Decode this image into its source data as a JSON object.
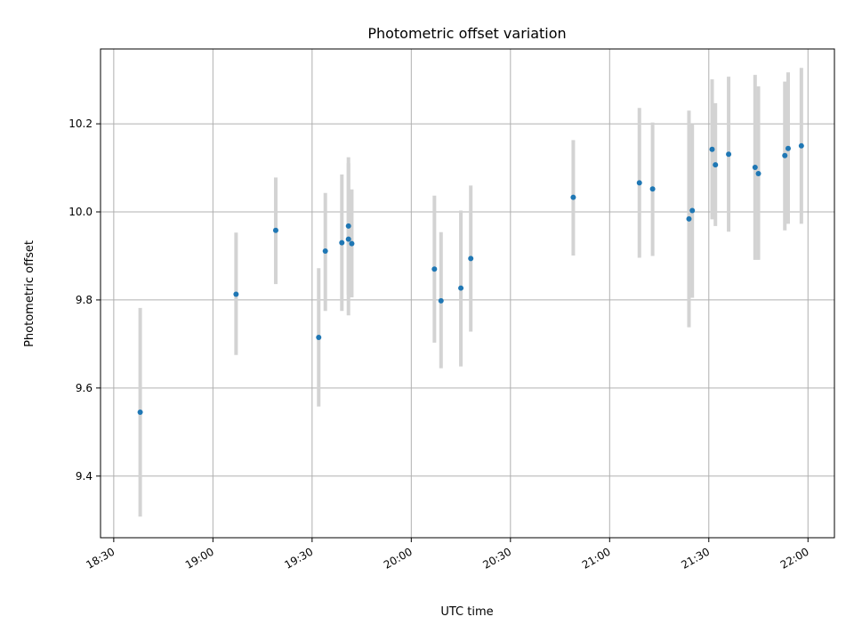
{
  "chart_data": {
    "type": "scatter",
    "title": "Photometric offset variation",
    "xlabel": "UTC time",
    "ylabel": "Photometric offset",
    "x_unit": "UTC time (HH:MM)",
    "xlim": [
      "18:26",
      "22:08"
    ],
    "ylim": [
      9.26,
      10.37
    ],
    "grid": true,
    "x_ticks": [
      "18:30",
      "19:00",
      "19:30",
      "20:00",
      "20:30",
      "21:00",
      "21:30",
      "22:00"
    ],
    "y_ticks": [
      "9.4",
      "9.6",
      "9.8",
      "10.0",
      "10.2"
    ],
    "marker_color": "#1f77b4",
    "errorbar_color": "#d3d3d3",
    "points": [
      {
        "x": "18:38",
        "y": 9.545,
        "err_low": 9.308,
        "err_high": 9.782
      },
      {
        "x": "19:07",
        "y": 9.813,
        "err_low": 9.675,
        "err_high": 9.953
      },
      {
        "x": "19:19",
        "y": 9.958,
        "err_low": 9.836,
        "err_high": 10.078
      },
      {
        "x": "19:32",
        "y": 9.715,
        "err_low": 9.558,
        "err_high": 9.872
      },
      {
        "x": "19:34",
        "y": 9.911,
        "err_low": 9.775,
        "err_high": 10.043
      },
      {
        "x": "19:39",
        "y": 9.93,
        "err_low": 9.775,
        "err_high": 10.085
      },
      {
        "x": "19:41",
        "y": 9.938,
        "err_low": 9.765,
        "err_high": 10.111
      },
      {
        "x": "19:41",
        "y": 9.968,
        "err_low": 9.812,
        "err_high": 10.124
      },
      {
        "x": "19:42",
        "y": 9.928,
        "err_low": 9.806,
        "err_high": 10.051
      },
      {
        "x": "20:07",
        "y": 9.87,
        "err_low": 9.703,
        "err_high": 10.037
      },
      {
        "x": "20:09",
        "y": 9.798,
        "err_low": 9.645,
        "err_high": 9.954
      },
      {
        "x": "20:15",
        "y": 9.827,
        "err_low": 9.649,
        "err_high": 10.003
      },
      {
        "x": "20:18",
        "y": 9.894,
        "err_low": 9.728,
        "err_high": 10.06
      },
      {
        "x": "20:49",
        "y": 10.033,
        "err_low": 9.901,
        "err_high": 10.163
      },
      {
        "x": "21:09",
        "y": 10.066,
        "err_low": 9.896,
        "err_high": 10.236
      },
      {
        "x": "21:13",
        "y": 10.052,
        "err_low": 9.9,
        "err_high": 10.203
      },
      {
        "x": "21:24",
        "y": 9.984,
        "err_low": 9.738,
        "err_high": 10.23
      },
      {
        "x": "21:25",
        "y": 10.003,
        "err_low": 9.805,
        "err_high": 10.2
      },
      {
        "x": "21:31",
        "y": 10.142,
        "err_low": 9.983,
        "err_high": 10.301
      },
      {
        "x": "21:32",
        "y": 10.107,
        "err_low": 9.968,
        "err_high": 10.247
      },
      {
        "x": "21:36",
        "y": 10.131,
        "err_low": 9.955,
        "err_high": 10.307
      },
      {
        "x": "21:44",
        "y": 10.101,
        "err_low": 9.891,
        "err_high": 10.311
      },
      {
        "x": "21:45",
        "y": 10.087,
        "err_low": 9.891,
        "err_high": 10.285
      },
      {
        "x": "21:53",
        "y": 10.128,
        "err_low": 9.958,
        "err_high": 10.296
      },
      {
        "x": "21:54",
        "y": 10.144,
        "err_low": 9.973,
        "err_high": 10.317
      },
      {
        "x": "21:58",
        "y": 10.15,
        "err_low": 9.973,
        "err_high": 10.327
      }
    ]
  }
}
